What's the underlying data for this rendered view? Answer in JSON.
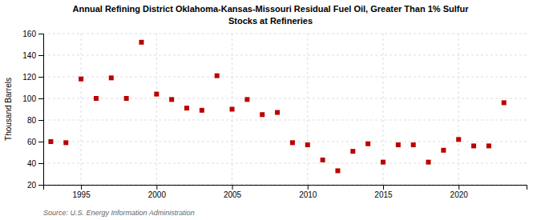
{
  "chart_data": {
    "type": "scatter",
    "title": "Annual Refining District Oklahoma-Kansas-Missouri Residual Fuel Oil, Greater Than 1% Sulfur",
    "subtitle": "Stocks at Refineries",
    "y_label": "Thousand Barrels",
    "annotations": [
      "Source: U.S. Energy Information Administration"
    ],
    "x": [
      1993,
      1994,
      1995,
      1996,
      1997,
      1998,
      1999,
      2000,
      2001,
      2002,
      2003,
      2004,
      2005,
      2006,
      2007,
      2008,
      2009,
      2010,
      2011,
      2012,
      2013,
      2014,
      2015,
      2016,
      2017,
      2018,
      2019,
      2020,
      2021,
      2022,
      2023
    ],
    "values": [
      60,
      59,
      118,
      100,
      119,
      100,
      152,
      104,
      99,
      91,
      89,
      121,
      90,
      99,
      85,
      87,
      59,
      57,
      43,
      33,
      51,
      58,
      41,
      57,
      57,
      41,
      52,
      62,
      56,
      56,
      96
    ],
    "color": "#bb0000",
    "marker": "square",
    "xlim": [
      1992.5,
      2024.5
    ],
    "xticks": [
      1995,
      2000,
      2005,
      2010,
      2015,
      2020
    ],
    "ylim": [
      20,
      160
    ],
    "yticks": [
      20,
      40,
      60,
      80,
      100,
      120,
      140,
      160
    ],
    "grid": true
  }
}
